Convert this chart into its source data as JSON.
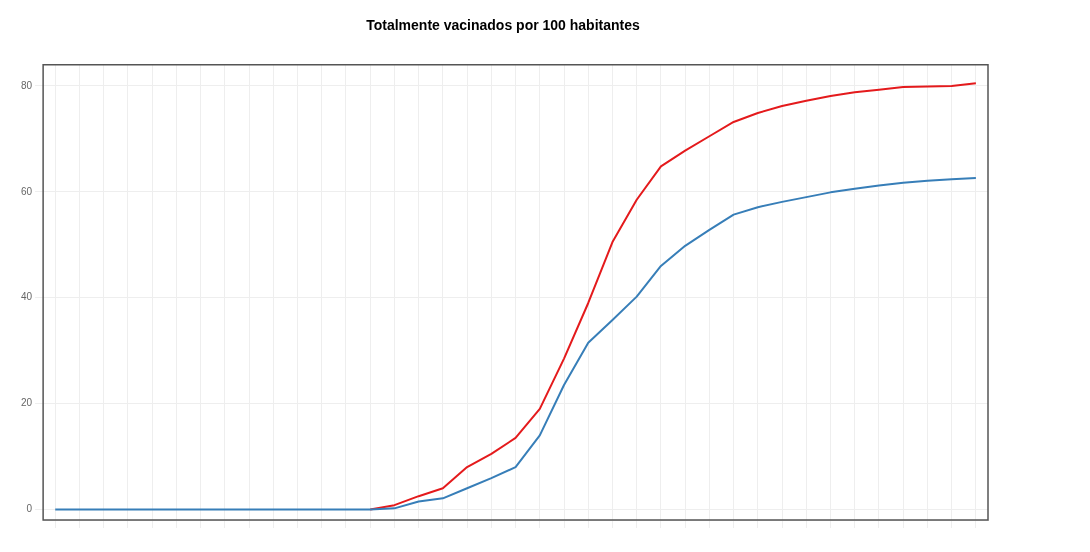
{
  "chart_data": {
    "type": "line",
    "title": "Totalmente vacinados por 100 habitantes",
    "categories": [
      null,
      null,
      null,
      null,
      null,
      null,
      null,
      null,
      null,
      null,
      null,
      null,
      null,
      null,
      null,
      null,
      null,
      null,
      null,
      null,
      null,
      null,
      null,
      null,
      null,
      null,
      null,
      null,
      null,
      null,
      null,
      null,
      null,
      null,
      null,
      null,
      null,
      null,
      null
    ],
    "series": [
      {
        "color": "#e41a1c",
        "values": [
          null,
          null,
          null,
          null,
          null,
          null,
          null,
          null,
          null,
          null,
          null,
          null,
          null,
          0,
          0.8,
          2.5,
          4,
          8,
          10.5,
          13.5,
          19,
          28.5,
          39,
          50.5,
          58.5,
          64.8,
          67.8,
          70.5,
          73.2,
          74.9,
          76.2,
          77.2,
          78.1,
          78.8,
          79.3,
          79.8,
          79.9,
          80,
          80.5
        ]
      },
      {
        "color": "#377eb8",
        "values": [
          0,
          0,
          0,
          0,
          0,
          0,
          0,
          0,
          0,
          0,
          0,
          0,
          0,
          0,
          0.2,
          1.5,
          2.1,
          4,
          5.9,
          8,
          14,
          23.5,
          31.5,
          35.8,
          40.2,
          46,
          49.8,
          52.8,
          55.7,
          57.1,
          58.1,
          59,
          59.9,
          60.6,
          61.2,
          61.7,
          62.1,
          62.4,
          62.6
        ]
      }
    ],
    "ylim": [
      -2,
      84
    ],
    "yticks": [
      0,
      20,
      40,
      60,
      80
    ],
    "grid": true,
    "tick_labels": "y",
    "line_style": "solid",
    "marker": "none"
  }
}
